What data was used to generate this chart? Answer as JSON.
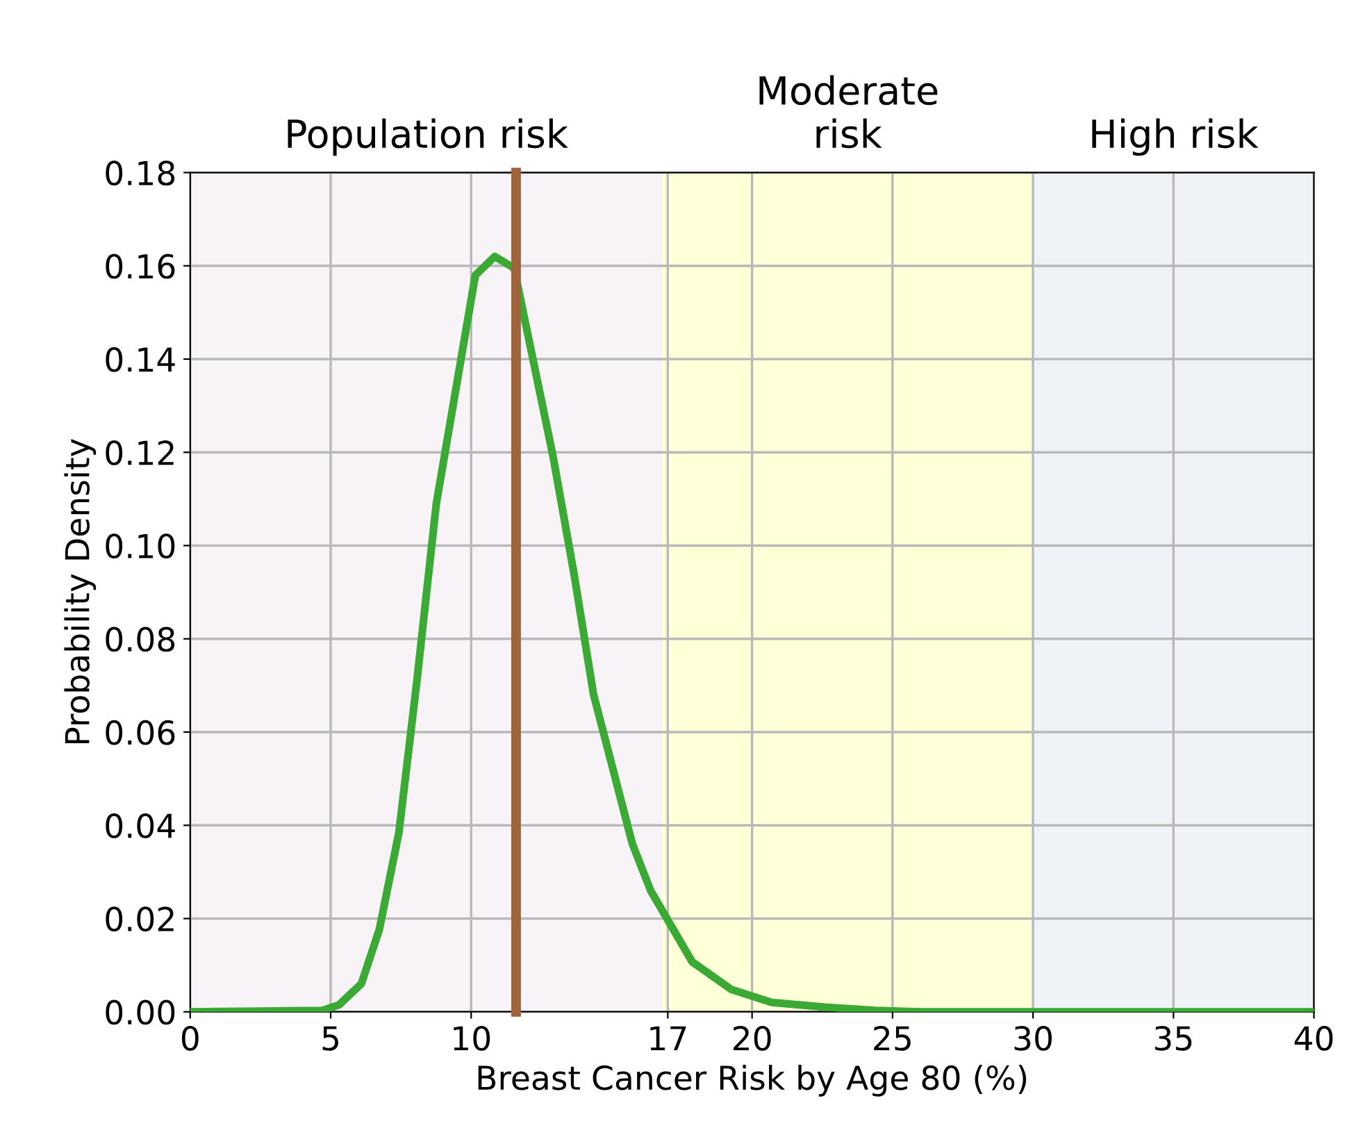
{
  "chart_data": {
    "type": "line",
    "xlabel": "Breast Cancer Risk by Age 80 (%)",
    "ylabel": "Probability Density",
    "x": [
      0,
      4.7,
      5.3,
      6.09,
      6.73,
      7.43,
      8.07,
      8.76,
      10.15,
      10.84,
      11.53,
      12.92,
      13.66,
      14.36,
      15.74,
      16.39,
      17.87,
      19.26,
      20.7,
      22.6,
      24.4,
      26,
      40
    ],
    "series": [
      {
        "color": "#3aaa35",
        "values": [
          0,
          0.0003,
          0.0015,
          0.006,
          0.0176,
          0.0385,
          0.071,
          0.109,
          0.158,
          0.162,
          0.1595,
          0.119,
          0.094,
          0.068,
          0.036,
          0.026,
          0.0107,
          0.0048,
          0.002,
          0.001,
          0.0003,
          0,
          0
        ]
      }
    ],
    "xlim": [
      0,
      40
    ],
    "xticks": [
      0,
      5,
      10,
      17,
      20,
      25,
      30,
      35,
      40
    ],
    "ylim": [
      0,
      0.18
    ],
    "yticks": [
      {
        "value": 0,
        "label": "0.00"
      },
      {
        "value": 0.02,
        "label": "0.02"
      },
      {
        "value": 0.04,
        "label": "0.04"
      },
      {
        "value": 0.06,
        "label": "0.06"
      },
      {
        "value": 0.08,
        "label": "0.08"
      },
      {
        "value": 0.1,
        "label": "0.10"
      },
      {
        "value": 0.12,
        "label": "0.12"
      },
      {
        "value": 0.14,
        "label": "0.14"
      },
      {
        "value": 0.16,
        "label": "0.16"
      },
      {
        "value": 0.18,
        "label": "0.18"
      }
    ],
    "grid": true,
    "marker": "none",
    "line_style": "solid",
    "ref_lines": [
      {
        "axis": "x",
        "value": 11.6,
        "color": "#a0643c"
      }
    ],
    "bands": [
      {
        "axis": "x",
        "from": 0,
        "to": 16.8,
        "label": "Population risk",
        "color": "#f8f3f7"
      },
      {
        "axis": "x",
        "from": 16.8,
        "to": 30,
        "label": "Moderate\nrisk",
        "color": "#ffffd8"
      },
      {
        "axis": "x",
        "from": 30,
        "to": 40,
        "label": "High risk",
        "color": "#eff2f7"
      }
    ]
  }
}
